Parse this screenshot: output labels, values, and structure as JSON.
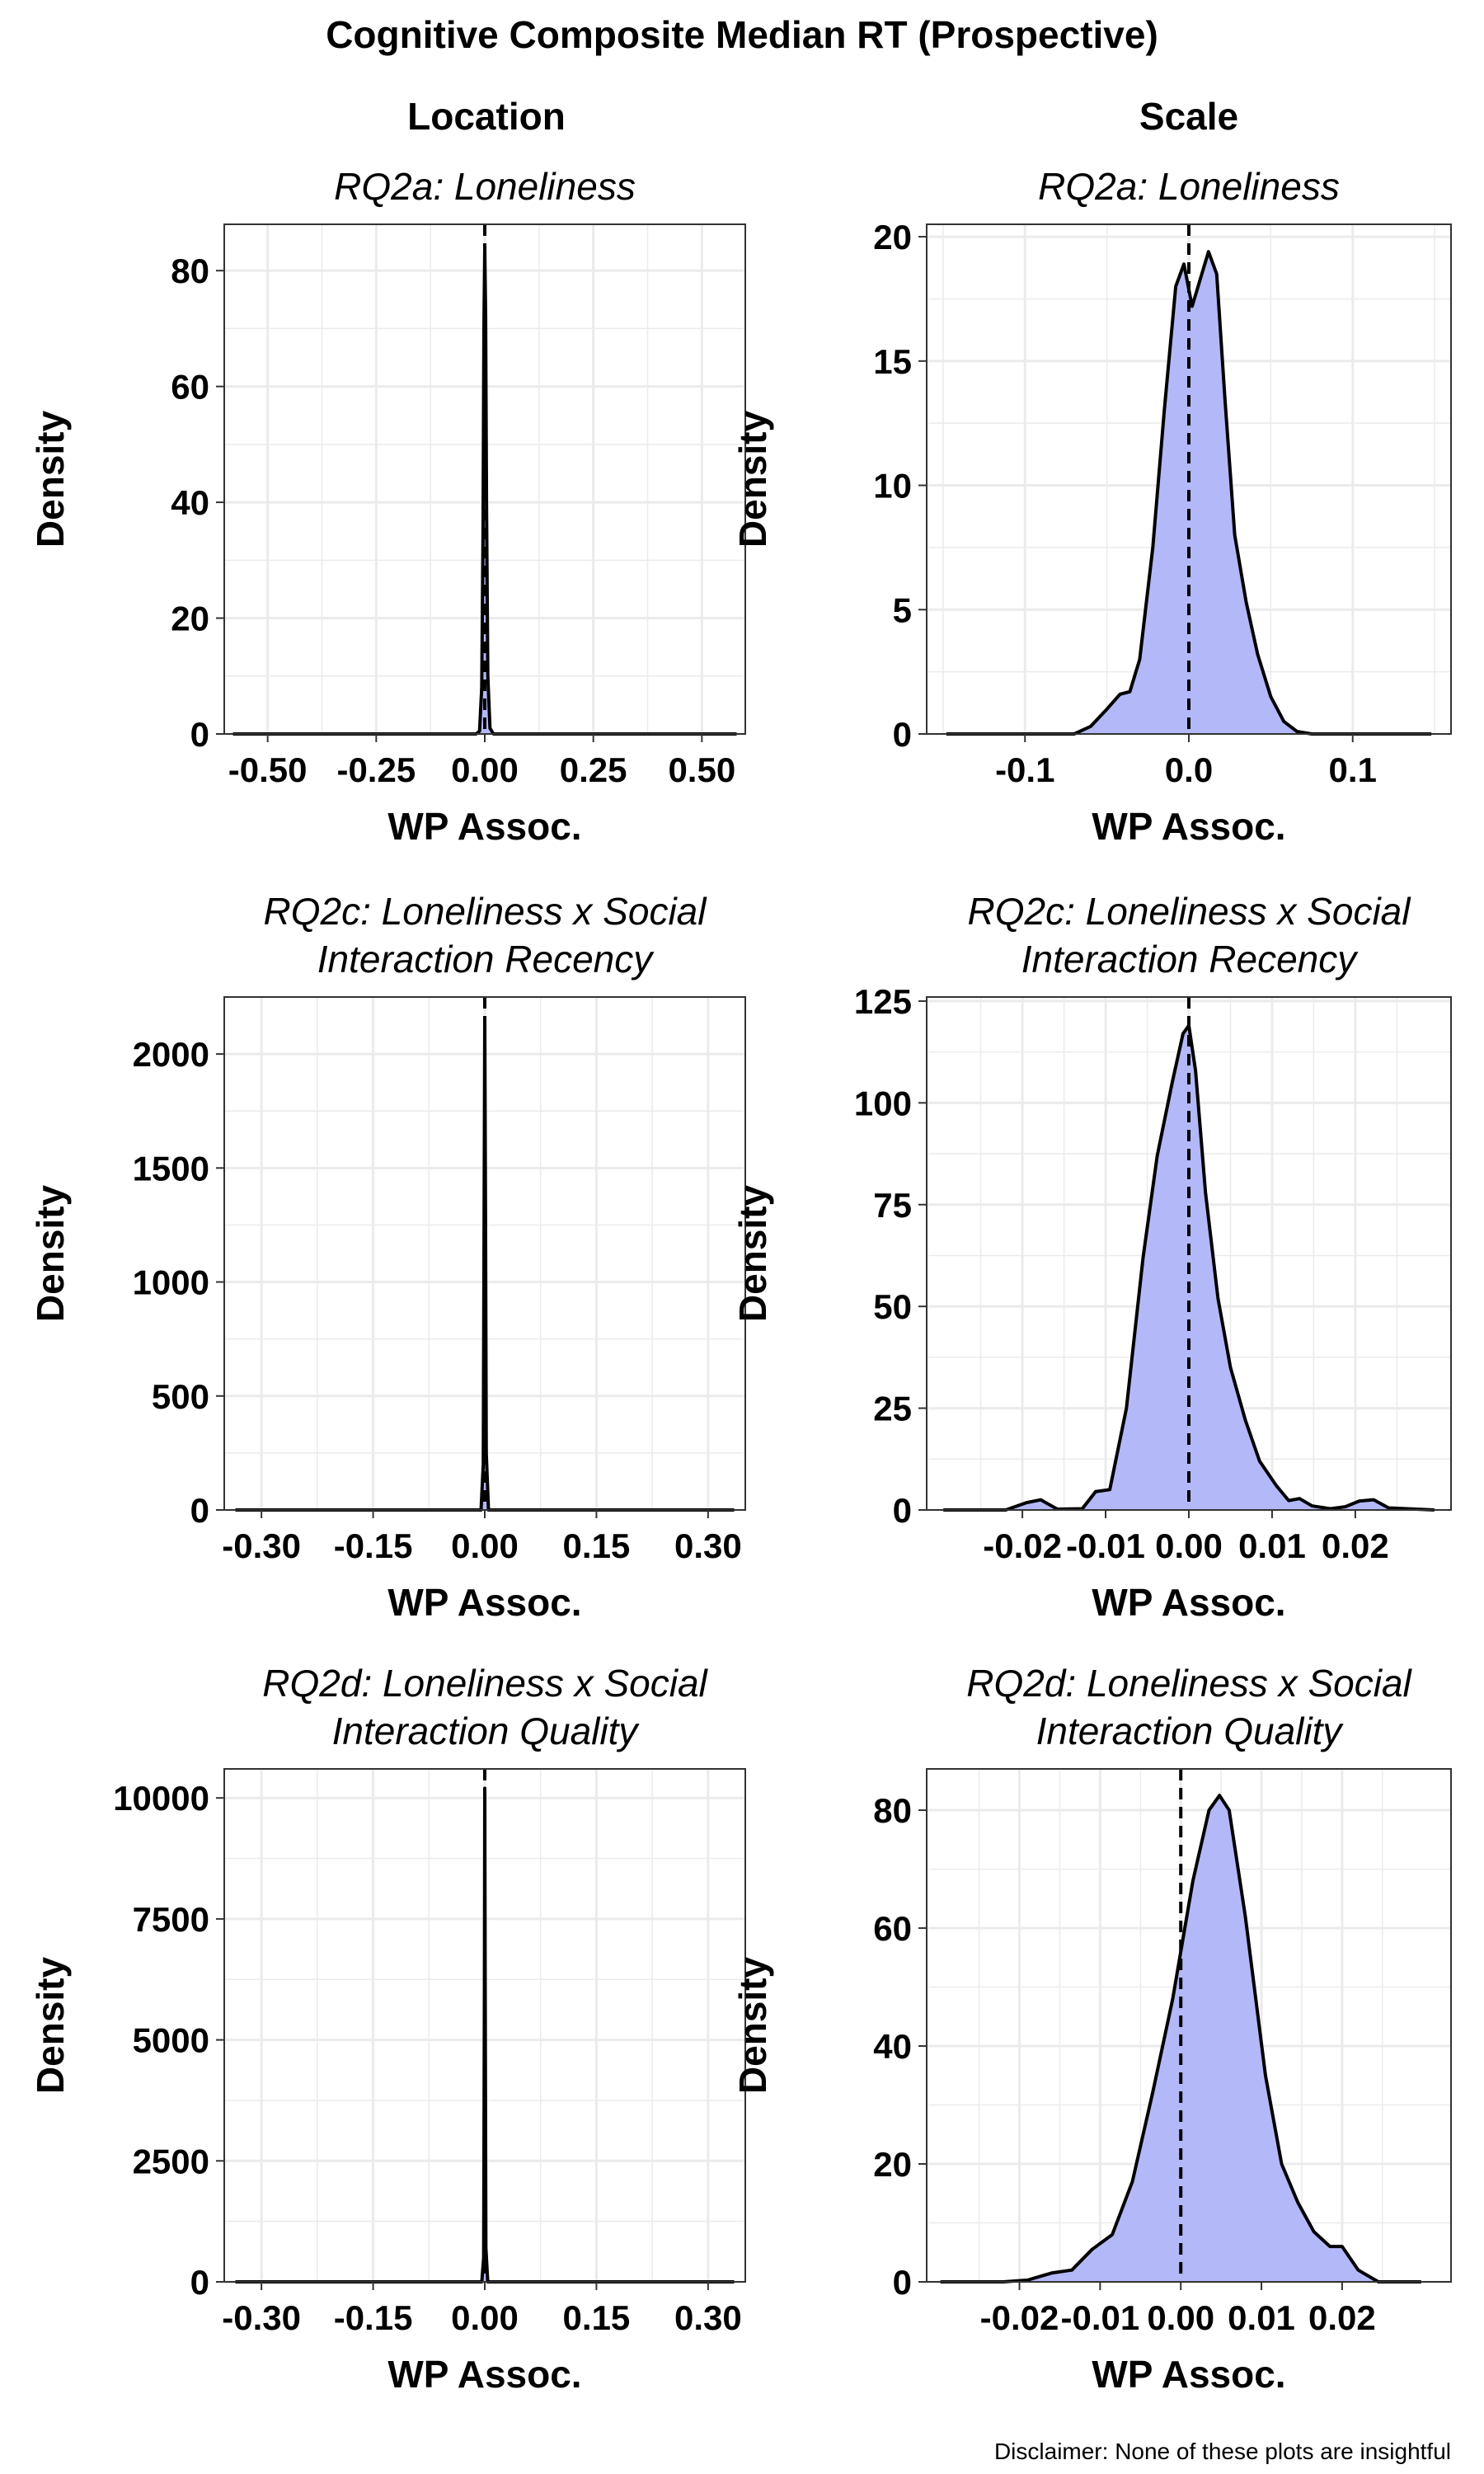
{
  "figure": {
    "title": "Cognitive Composite Median RT (Prospective)",
    "column_headers": [
      "Location",
      "Scale"
    ],
    "disclaimer": "Disclaimer: None of these plots are insightful",
    "fill_color": "#b3b8f8",
    "line_color": "#000000",
    "grid_color": "#ebebeb"
  },
  "chart_data": [
    {
      "type": "area",
      "column": "Location",
      "subtitle": "RQ2a: Loneliness",
      "xlabel": "WP Assoc.",
      "ylabel": "Density",
      "xlim": [
        -0.6,
        0.6
      ],
      "ylim": [
        0,
        88
      ],
      "xticks": [
        -0.5,
        -0.25,
        0,
        0.25,
        0.5
      ],
      "xtick_labels": [
        "-0.50",
        "-0.25",
        "0.00",
        "0.25",
        "0.50"
      ],
      "yticks": [
        0,
        20,
        40,
        60,
        80
      ],
      "ytick_labels": [
        "0",
        "20",
        "40",
        "60",
        "80"
      ],
      "vline_x": 0,
      "density": {
        "x": [
          -0.58,
          -0.02,
          -0.012,
          -0.007,
          -0.004,
          -0.002,
          0,
          0.002,
          0.004,
          0.007,
          0.012,
          0.02,
          0.58
        ],
        "y": [
          0,
          0,
          0.5,
          8,
          35,
          70,
          84,
          72,
          40,
          10,
          1,
          0,
          0
        ]
      }
    },
    {
      "type": "area",
      "column": "Scale",
      "subtitle": "RQ2a: Loneliness",
      "xlabel": "WP Assoc.",
      "ylabel": "Density",
      "xlim": [
        -0.16,
        0.16
      ],
      "ylim": [
        0,
        20.5
      ],
      "xticks": [
        -0.1,
        0,
        0.1
      ],
      "xtick_labels": [
        "-0.1",
        "0.0",
        "0.1"
      ],
      "yticks": [
        0,
        5,
        10,
        15,
        20
      ],
      "ytick_labels": [
        "0",
        "5",
        "10",
        "15",
        "20"
      ],
      "vline_x": 0,
      "density": {
        "x": [
          -0.148,
          -0.07,
          -0.06,
          -0.05,
          -0.042,
          -0.036,
          -0.03,
          -0.022,
          -0.015,
          -0.008,
          -0.003,
          0.002,
          0.007,
          0.012,
          0.017,
          0.022,
          0.028,
          0.035,
          0.042,
          0.05,
          0.058,
          0.066,
          0.075,
          0.148
        ],
        "y": [
          0,
          0,
          0.3,
          1.0,
          1.6,
          1.7,
          3.0,
          7.5,
          13.0,
          18.0,
          18.9,
          17.2,
          18.3,
          19.4,
          18.5,
          13.5,
          8.0,
          5.3,
          3.2,
          1.5,
          0.5,
          0.1,
          0,
          0
        ]
      }
    },
    {
      "type": "area",
      "column": "Location",
      "subtitle": "RQ2c: Loneliness x Social\nInteraction Recency",
      "xlabel": "WP Assoc.",
      "ylabel": "Density",
      "xlim": [
        -0.35,
        0.35
      ],
      "ylim": [
        0,
        2250
      ],
      "xticks": [
        -0.3,
        -0.15,
        0,
        0.15,
        0.3
      ],
      "xtick_labels": [
        "-0.30",
        "-0.15",
        "0.00",
        "0.15",
        "0.30"
      ],
      "yticks": [
        0,
        500,
        1000,
        1500,
        2000
      ],
      "ytick_labels": [
        "0",
        "500",
        "1000",
        "1500",
        "2000"
      ],
      "vline_x": 0,
      "density": {
        "x": [
          -0.335,
          -0.005,
          -0.002,
          -0.001,
          0,
          0.001,
          0.002,
          0.005,
          0.335
        ],
        "y": [
          0,
          0,
          200,
          1200,
          2150,
          1300,
          250,
          0,
          0
        ]
      }
    },
    {
      "type": "area",
      "column": "Scale",
      "subtitle": "RQ2c: Loneliness x Social\nInteraction Recency",
      "xlabel": "WP Assoc.",
      "ylabel": "Density",
      "xlim": [
        -0.0315,
        0.0315
      ],
      "ylim": [
        0,
        126
      ],
      "xticks": [
        -0.02,
        -0.01,
        0,
        0.01,
        0.02
      ],
      "xtick_labels": [
        "-0.02",
        "-0.01",
        "0.00",
        "0.01",
        "0.02"
      ],
      "yticks": [
        0,
        25,
        50,
        75,
        100,
        125
      ],
      "ytick_labels": [
        "0",
        "25",
        "50",
        "75",
        "100",
        "125"
      ],
      "vline_x": 0,
      "density": {
        "x": [
          -0.0295,
          -0.022,
          -0.0195,
          -0.0178,
          -0.0158,
          -0.0128,
          -0.0112,
          -0.0095,
          -0.0075,
          -0.0055,
          -0.0038,
          -0.002,
          -0.0007,
          0,
          0.0008,
          0.002,
          0.0035,
          0.005,
          0.0068,
          0.0085,
          0.0105,
          0.012,
          0.0133,
          0.0148,
          0.017,
          0.0188,
          0.0205,
          0.0222,
          0.024,
          0.0295
        ],
        "y": [
          0,
          0,
          1.8,
          2.5,
          0.2,
          0.3,
          4.5,
          5.0,
          25,
          62,
          87,
          105,
          117,
          119,
          108,
          78,
          52,
          35,
          22,
          12,
          6,
          2.3,
          2.8,
          1.0,
          0.3,
          0.8,
          2.2,
          2.5,
          0.5,
          0
        ]
      }
    },
    {
      "type": "area",
      "column": "Location",
      "subtitle": "RQ2d: Loneliness x Social\nInteraction Quality",
      "xlabel": "WP Assoc.",
      "ylabel": "Density",
      "xlim": [
        -0.35,
        0.35
      ],
      "ylim": [
        0,
        10600
      ],
      "xticks": [
        -0.3,
        -0.15,
        0,
        0.15,
        0.3
      ],
      "xtick_labels": [
        "-0.30",
        "-0.15",
        "0.00",
        "0.15",
        "0.30"
      ],
      "yticks": [
        0,
        2500,
        5000,
        7500,
        10000
      ],
      "ytick_labels": [
        "0",
        "2500",
        "5000",
        "7500",
        "10000"
      ],
      "vline_x": 0,
      "density": {
        "x": [
          -0.335,
          -0.004,
          -0.0015,
          -0.0005,
          0,
          0.0005,
          0.0015,
          0.004,
          0.335
        ],
        "y": [
          0,
          0,
          500,
          6000,
          10200,
          6500,
          700,
          0,
          0
        ]
      }
    },
    {
      "type": "area",
      "column": "Scale",
      "subtitle": "RQ2d: Loneliness x Social\nInteraction Quality",
      "xlabel": "WP Assoc.",
      "ylabel": "Density",
      "xlim": [
        -0.0315,
        0.0335
      ],
      "ylim": [
        0,
        87
      ],
      "xticks": [
        -0.02,
        -0.01,
        0,
        0.01,
        0.02
      ],
      "xtick_labels": [
        "-0.02",
        "-0.01",
        "0.00",
        "0.01",
        "0.02"
      ],
      "yticks": [
        0,
        20,
        40,
        60,
        80
      ],
      "ytick_labels": [
        "0",
        "20",
        "40",
        "60",
        "80"
      ],
      "vline_x": 0,
      "density": {
        "x": [
          -0.0298,
          -0.022,
          -0.019,
          -0.016,
          -0.0135,
          -0.011,
          -0.0085,
          -0.006,
          -0.0035,
          -0.001,
          0.0015,
          0.0035,
          0.0048,
          0.006,
          0.008,
          0.0105,
          0.0125,
          0.0145,
          0.0165,
          0.0185,
          0.02,
          0.022,
          0.0245,
          0.0298
        ],
        "y": [
          0,
          0,
          0.3,
          1.5,
          2.0,
          5.5,
          8.0,
          17,
          32,
          48,
          68,
          80,
          82.5,
          80,
          62,
          35,
          20,
          13.5,
          8.5,
          6,
          6,
          2,
          0,
          0
        ]
      }
    }
  ]
}
